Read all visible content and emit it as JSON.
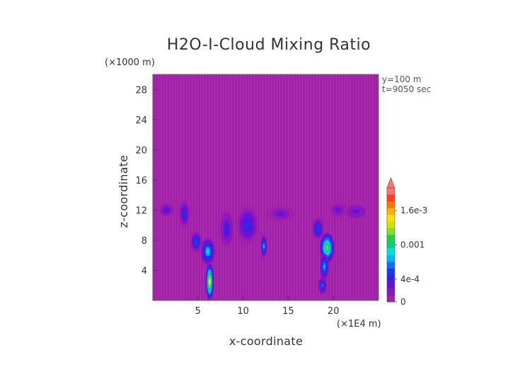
{
  "chart_data": {
    "type": "heatmap",
    "title": "H2O-I-Cloud Mixing Ratio",
    "xlabel": "x-coordinate",
    "ylabel": "z-coordinate",
    "x_unit": "(×1E4 m)",
    "y_unit": "(×1000 m)",
    "annotations": [
      "y=100 m",
      "t=9050 sec"
    ],
    "xlim": [
      0,
      25
    ],
    "ylim": [
      0,
      30
    ],
    "x_ticks": [
      5,
      10,
      15,
      20
    ],
    "y_ticks": [
      4,
      8,
      12,
      16,
      20,
      24,
      28
    ],
    "background_color": "#a020a8",
    "colorbar": {
      "min": 0,
      "max": 0.002,
      "labels": [
        {
          "value": 0,
          "text": "0"
        },
        {
          "value": 0.0004,
          "text": "4e-4"
        },
        {
          "value": 0.001,
          "text": "0.001"
        },
        {
          "value": 0.0016,
          "text": "1.6e-3"
        }
      ],
      "colors": [
        "#a020a8",
        "#8a18c0",
        "#6a10d8",
        "#3a20e0",
        "#1838f0",
        "#0a70ff",
        "#00b8ff",
        "#00e0e0",
        "#00d080",
        "#20d040",
        "#80e020",
        "#d0e000",
        "#ffe000",
        "#ffb000",
        "#ff7800",
        "#ff4020",
        "#ff7070"
      ],
      "overflow_color": "#ff7070"
    },
    "features": [
      {
        "x": 6.3,
        "z": 2.5,
        "sx": 0.45,
        "sz": 2.5,
        "value": 0.0015
      },
      {
        "x": 6.1,
        "z": 6.5,
        "sx": 0.8,
        "sz": 1.8,
        "value": 0.0009
      },
      {
        "x": 4.8,
        "z": 7.8,
        "sx": 0.7,
        "sz": 1.5,
        "value": 0.0006
      },
      {
        "x": 3.5,
        "z": 11.5,
        "sx": 0.6,
        "sz": 1.8,
        "value": 0.0005
      },
      {
        "x": 1.5,
        "z": 12,
        "sx": 0.8,
        "sz": 0.9,
        "value": 0.0004
      },
      {
        "x": 10.5,
        "z": 10,
        "sx": 1.2,
        "sz": 2.5,
        "value": 0.0005
      },
      {
        "x": 12.3,
        "z": 7.2,
        "sx": 0.35,
        "sz": 1.5,
        "value": 0.0008
      },
      {
        "x": 8.2,
        "z": 9.5,
        "sx": 0.8,
        "sz": 2.5,
        "value": 0.00045
      },
      {
        "x": 14.2,
        "z": 11.5,
        "sx": 1.5,
        "sz": 1.0,
        "value": 0.0003
      },
      {
        "x": 19.3,
        "z": 7.0,
        "sx": 0.8,
        "sz": 2.0,
        "value": 0.0013
      },
      {
        "x": 18.8,
        "z": 2.0,
        "sx": 0.45,
        "sz": 1.2,
        "value": 0.0007
      },
      {
        "x": 19.0,
        "z": 4.5,
        "sx": 0.5,
        "sz": 1.8,
        "value": 0.0008
      },
      {
        "x": 18.3,
        "z": 9.5,
        "sx": 0.7,
        "sz": 1.6,
        "value": 0.0006
      },
      {
        "x": 22.5,
        "z": 11.8,
        "sx": 1.2,
        "sz": 1.0,
        "value": 0.00035
      },
      {
        "x": 20.5,
        "z": 12.0,
        "sx": 1.0,
        "sz": 1.0,
        "value": 0.0003
      }
    ]
  }
}
